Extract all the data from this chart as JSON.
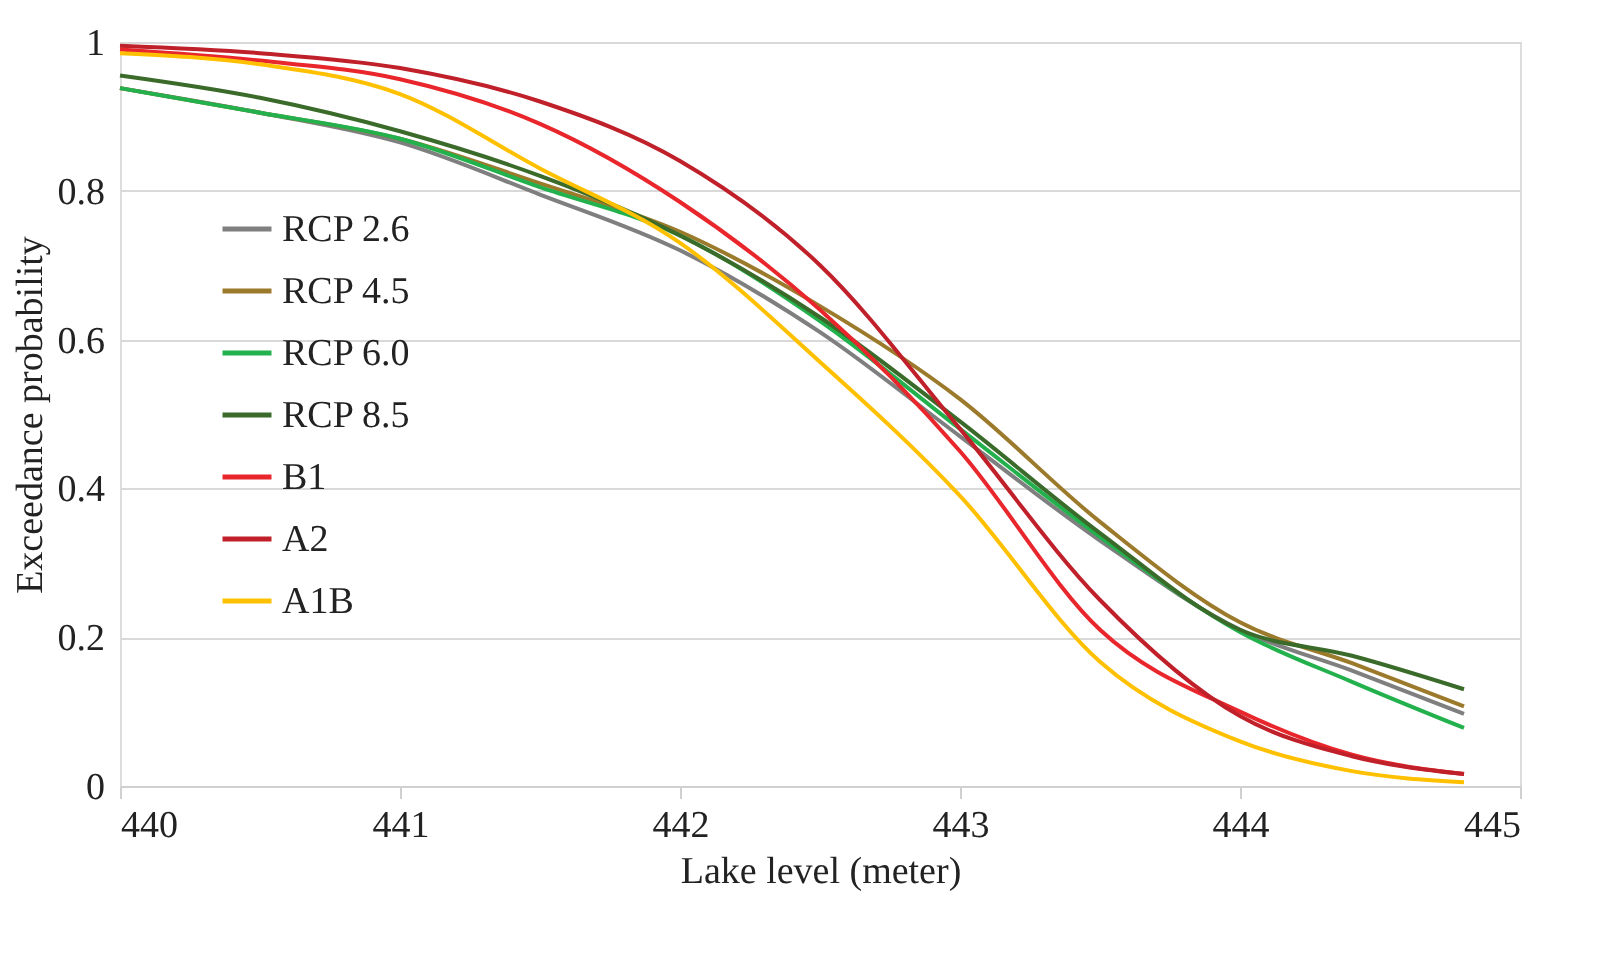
{
  "chart_data": {
    "type": "line",
    "xlabel": "Lake level (meter)",
    "ylabel": "Exceedance probability",
    "x": [
      440,
      440.5,
      441,
      441.5,
      442,
      442.5,
      443,
      443.5,
      444,
      444.4,
      444.8
    ],
    "series": [
      {
        "name": "RCP 2.6",
        "color": "#7f7f7f",
        "values": [
          0.938,
          0.905,
          0.865,
          0.795,
          0.72,
          0.61,
          0.47,
          0.33,
          0.21,
          0.155,
          0.097
        ]
      },
      {
        "name": "RCP 4.5",
        "color": "#9c7a2c",
        "values": [
          0.938,
          0.905,
          0.87,
          0.81,
          0.745,
          0.645,
          0.52,
          0.355,
          0.22,
          0.165,
          0.107
        ]
      },
      {
        "name": "RCP 6.0",
        "color": "#22b14c",
        "values": [
          0.938,
          0.905,
          0.87,
          0.805,
          0.74,
          0.625,
          0.48,
          0.335,
          0.207,
          0.14,
          0.078
        ]
      },
      {
        "name": "RCP 8.5",
        "color": "#3b6b2a",
        "values": [
          0.955,
          0.925,
          0.88,
          0.82,
          0.74,
          0.63,
          0.49,
          0.34,
          0.21,
          0.175,
          0.13
        ]
      },
      {
        "name": "B1",
        "color": "#e8262b",
        "values": [
          0.99,
          0.975,
          0.95,
          0.89,
          0.785,
          0.64,
          0.45,
          0.21,
          0.1,
          0.042,
          0.016
        ]
      },
      {
        "name": "A2",
        "color": "#c0202a",
        "values": [
          0.995,
          0.985,
          0.965,
          0.92,
          0.84,
          0.7,
          0.48,
          0.25,
          0.094,
          0.04,
          0.016
        ]
      },
      {
        "name": "A1B",
        "color": "#ffc000",
        "values": [
          0.985,
          0.97,
          0.93,
          0.83,
          0.73,
          0.57,
          0.39,
          0.167,
          0.06,
          0.02,
          0.005
        ]
      }
    ],
    "xlim": [
      440,
      445
    ],
    "xticks": [
      440,
      441,
      442,
      443,
      444,
      445
    ],
    "ylim": [
      0,
      1
    ],
    "yticks": [
      0,
      0.2,
      0.4,
      0.6,
      0.8,
      1
    ],
    "grid": "y",
    "legend": "left",
    "line_style": "solid",
    "marker": "none"
  }
}
